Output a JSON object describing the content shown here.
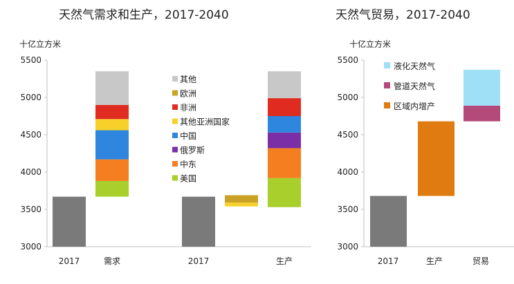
{
  "chart_data": [
    {
      "type": "waterfall-bar",
      "title": "天然气需求和生产，2017-2040",
      "ylabel": "十亿立方米",
      "ylim": [
        3000,
        5500
      ],
      "yticks": [
        3000,
        3500,
        4000,
        4500,
        5000,
        5500
      ],
      "categories": [
        "2017",
        "需求",
        "2017",
        "生产"
      ],
      "base_2017": 3670,
      "series": [
        {
          "name": "其他",
          "color": "#c8c8c8"
        },
        {
          "name": "欧洲",
          "color": "#c9a227"
        },
        {
          "name": "非洲",
          "color": "#e02b20"
        },
        {
          "name": "其他亚洲国家",
          "color": "#f7d12a"
        },
        {
          "name": "中国",
          "color": "#2e86de"
        },
        {
          "name": "俄罗斯",
          "color": "#7b2fa6"
        },
        {
          "name": "中东",
          "color": "#f57f20"
        },
        {
          "name": "美国",
          "color": "#a8cf2b"
        }
      ],
      "demand_stack": [
        {
          "series": "美国",
          "value": 210
        },
        {
          "series": "中东",
          "value": 290
        },
        {
          "series": "中国",
          "value": 390
        },
        {
          "series": "其他亚洲国家",
          "value": 150
        },
        {
          "series": "非洲",
          "value": 190
        },
        {
          "series": "其他",
          "value": 450
        }
      ],
      "production_negative": [
        {
          "series": "欧洲",
          "value": -100
        },
        {
          "series": "其他亚洲国家",
          "value": -50
        }
      ],
      "production_stack": [
        {
          "series": "美国",
          "value": 390
        },
        {
          "series": "中东",
          "value": 400
        },
        {
          "series": "俄罗斯",
          "value": 210
        },
        {
          "series": "中国",
          "value": 220
        },
        {
          "series": "非洲",
          "value": 240
        },
        {
          "series": "其他",
          "value": 360
        }
      ],
      "production_base": 3530
    },
    {
      "type": "waterfall-bar",
      "title": "天然气贸易，2017-2040",
      "ylabel": "十亿立方米",
      "ylim": [
        3000,
        5500
      ],
      "yticks": [
        3000,
        3500,
        4000,
        4500,
        5000,
        5500
      ],
      "categories": [
        "2017",
        "生产",
        "贸易"
      ],
      "series": [
        {
          "name": "液化天然气",
          "color": "#9fe0f7"
        },
        {
          "name": "管道天然气",
          "color": "#b34a7a"
        },
        {
          "name": "区域内增产",
          "color": "#e07b12"
        }
      ],
      "bars": [
        {
          "category": "2017",
          "series": null,
          "from": 3000,
          "to": 3680
        },
        {
          "category": "生产",
          "series": "区域内增产",
          "from": 3680,
          "to": 4680
        },
        {
          "category": "贸易",
          "series": "管道天然气",
          "from": 4680,
          "to": 4890
        },
        {
          "category": "贸易",
          "series": "液化天然气",
          "from": 4890,
          "to": 5370
        }
      ]
    }
  ],
  "colors": {
    "base_bar": "#7a7a7a",
    "axis": "#bfbfbf",
    "text": "#222222"
  }
}
